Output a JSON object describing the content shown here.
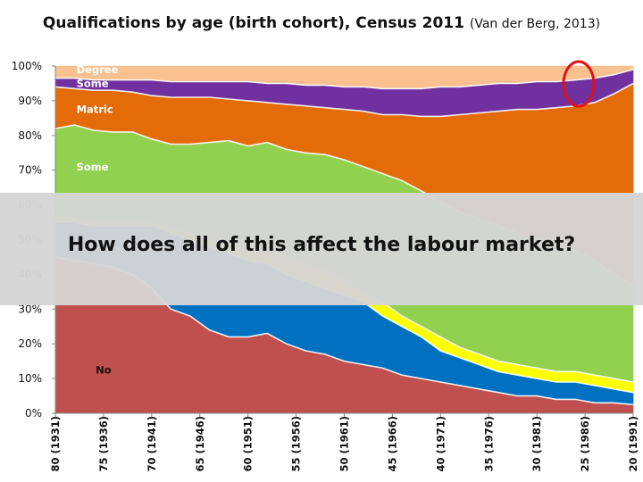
{
  "chart_data": {
    "type": "area",
    "stacked": true,
    "percent": true,
    "title": "Qualifications by age (birth cohort), Census 2011",
    "subtitle": "(Van der Berg, 2013)",
    "xlabel": "",
    "ylabel": "",
    "ylim": [
      0,
      100
    ],
    "yticks": [
      "0%",
      "10%",
      "20%",
      "30%",
      "40%",
      "50%",
      "60%",
      "70%",
      "80%",
      "90%",
      "100%"
    ],
    "x_ticklabels": [
      "80 (1931)",
      "75 (1936)",
      "70 (1941)",
      "65 (1946)",
      "60 (1951)",
      "55 (1956)",
      "50 (1961)",
      "45 (1966)",
      "40 (1971)",
      "35 (1976)",
      "30 (1981)",
      "25 (1986)",
      "20 (1991)"
    ],
    "x_ages": [
      80,
      78,
      76,
      74,
      72,
      70,
      68,
      66,
      64,
      62,
      60,
      58,
      56,
      54,
      52,
      50,
      48,
      46,
      44,
      42,
      40,
      38,
      36,
      34,
      32,
      30,
      28,
      26,
      24,
      22,
      20
    ],
    "boundaries": [
      {
        "label": "",
        "color": "#c0504d",
        "values": [
          45,
          44,
          43,
          42,
          40,
          36,
          30,
          28,
          24,
          22,
          22,
          23,
          20,
          18,
          17,
          15,
          14,
          13,
          11,
          10,
          9,
          8,
          7,
          6,
          5,
          5,
          4,
          4,
          3,
          3,
          2.5
        ]
      },
      {
        "label": "",
        "color": "#0070c0",
        "values": [
          55,
          55,
          54,
          54,
          54,
          54,
          52,
          50,
          48,
          46,
          44,
          43,
          40,
          38,
          36,
          34,
          32,
          28,
          25,
          22,
          18,
          16,
          14,
          12,
          11,
          10,
          9,
          9,
          8,
          7,
          6
        ]
      },
      {
        "label": "",
        "color": "#ffff00",
        "values": [
          56,
          56,
          55,
          55,
          55,
          55,
          53,
          52,
          50,
          49,
          48,
          47,
          45,
          43,
          41,
          38,
          35,
          32,
          28,
          25,
          22,
          19,
          17,
          15,
          14,
          13,
          12,
          12,
          11,
          10,
          9
        ]
      },
      {
        "label": "",
        "color": "#92d050",
        "values": [
          82,
          83,
          81.5,
          81,
          81,
          79,
          77.5,
          77.5,
          78,
          78.5,
          77,
          78,
          76,
          75,
          74.5,
          73,
          71,
          69,
          67,
          64,
          61,
          58,
          56,
          54,
          52,
          50,
          49,
          47,
          44,
          40,
          37
        ]
      },
      {
        "label": "",
        "color": "#e36c09",
        "values": [
          94,
          93.5,
          93,
          93,
          92.5,
          91.5,
          91,
          91,
          91,
          90.5,
          90,
          89.5,
          89,
          88.5,
          88,
          87.5,
          87,
          86,
          86,
          85.5,
          85.5,
          86,
          86.5,
          87,
          87.5,
          87.5,
          88,
          88.5,
          89.5,
          92,
          95
        ]
      },
      {
        "label": "",
        "color": "#7030a0",
        "values": [
          96.5,
          96.5,
          96,
          96,
          96,
          96,
          95.5,
          95.5,
          95.5,
          95.5,
          95.5,
          95,
          95,
          94.5,
          94.5,
          94,
          94,
          93.5,
          93.5,
          93.5,
          94,
          94,
          94.5,
          95,
          95,
          95.5,
          95.5,
          96,
          96.5,
          97.5,
          99
        ]
      },
      {
        "label": "",
        "color": "#fac090",
        "values": [
          100,
          100,
          100,
          100,
          100,
          100,
          100,
          100,
          100,
          100,
          100,
          100,
          100,
          100,
          100,
          100,
          100,
          100,
          100,
          100,
          100,
          100,
          100,
          100,
          100,
          100,
          100,
          100,
          100,
          100,
          100
        ]
      }
    ],
    "series_labels": [
      {
        "text": "Degree",
        "age": 78,
        "y": 99
      },
      {
        "text": "Some",
        "age": 78,
        "y": 95
      },
      {
        "text": "Matric",
        "age": 78,
        "y": 87.5
      },
      {
        "text": "Some",
        "age": 78,
        "y": 71
      },
      {
        "text": "No",
        "age": 76,
        "y": 12.5
      }
    ],
    "grid": false,
    "annotation": "red ellipse highlighting the purple band around age 25 (1986)"
  },
  "overlay": {
    "text": "How does all of this affect the labour market?"
  },
  "colors": {
    "annotation": "#e0101a"
  }
}
